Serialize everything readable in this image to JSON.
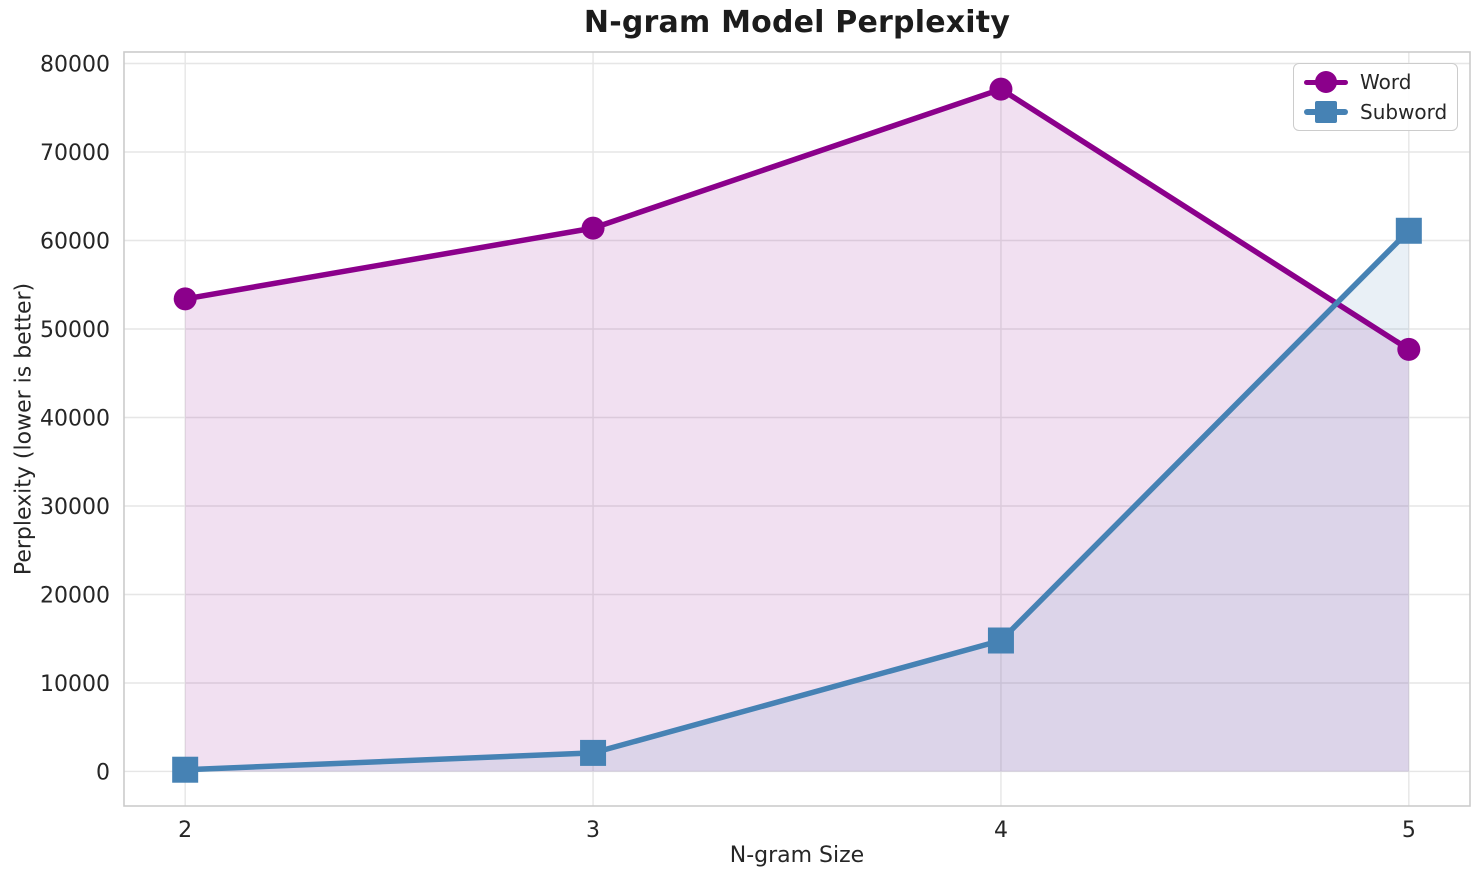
{
  "chart_data": {
    "type": "line",
    "title": "N-gram Model Perplexity",
    "xlabel": "N-gram Size",
    "ylabel": "Perplexity (lower is better)",
    "x": [
      2,
      3,
      4,
      5
    ],
    "series": [
      {
        "name": "Word",
        "values": [
          53400,
          61400,
          77100,
          47700
        ],
        "color": "#8B008B",
        "marker": "circle"
      },
      {
        "name": "Subword",
        "values": [
          200,
          2100,
          14800,
          61100
        ],
        "color": "#4682B4",
        "marker": "square"
      }
    ],
    "xticks": [
      2,
      3,
      4,
      5
    ],
    "yticks": [
      0,
      10000,
      20000,
      30000,
      40000,
      50000,
      60000,
      70000,
      80000
    ],
    "xlim": [
      1.85,
      5.15
    ],
    "ylim": [
      -3900,
      81300
    ],
    "grid": true,
    "area_fill_to_zero": true,
    "fill_alpha": 0.12,
    "legend_position": "upper right",
    "grid_color": "#e6e6e6",
    "spine_color": "#cbcbcb",
    "text_color": "#262626"
  }
}
